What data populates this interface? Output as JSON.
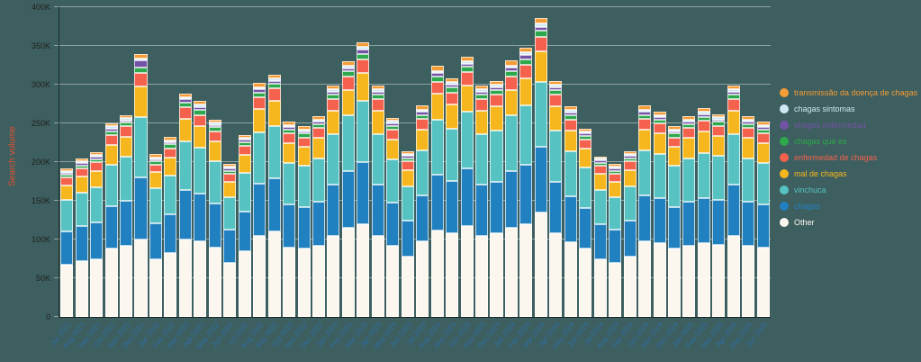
{
  "page": {
    "background_color": "#3e5f5f"
  },
  "axes": {
    "y_title_color": "#e25230",
    "y_tick_color": "#1f1f1f",
    "x_tick_color": "#2e6da4",
    "grid_color": "rgba(255,255,255,0.42)"
  },
  "chart_data": {
    "type": "bar",
    "stacked": true,
    "orientation": "vertical",
    "title": "",
    "xlabel": "",
    "ylabel": "Search volume",
    "values_unit": "thousands of searches (K)",
    "ylim_k": [
      0,
      400
    ],
    "yticks_k": [
      0,
      50,
      100,
      150,
      200,
      250,
      300,
      350,
      400
    ],
    "ytick_labels": [
      "0",
      "50K",
      "100K",
      "150K",
      "200K",
      "250K",
      "300K",
      "350K",
      "400K"
    ],
    "grid": "horizontal",
    "legend_position": "right",
    "legend_order": "top-to-bottom is reverse of stacking order",
    "categories": [
      "Jul 2021",
      "Aug 2021",
      "Sep 2021",
      "Oct 2021",
      "Nov 2021",
      "Dec 2021",
      "Jan 2022",
      "Feb 2022",
      "Mar 2022",
      "Apr 2022",
      "May 2022",
      "Jun 2022",
      "Jul 2022",
      "Aug 2022",
      "Sep 2022",
      "Oct 2022",
      "Nov 2022",
      "Dec 2022",
      "Jan 2023",
      "Feb 2023",
      "Mar 2023",
      "Apr 2023",
      "May 2023",
      "Jun 2023",
      "Jul 2023",
      "Aug 2023",
      "Sep 2023",
      "Oct 2023",
      "Nov 2023",
      "Dec 2023",
      "Jan 2024",
      "Feb 2024",
      "Mar 2024",
      "Apr 2024",
      "May 2024",
      "Jun 2024",
      "Jul 2024",
      "Aug 2024",
      "Sep 2024",
      "Oct 2024",
      "Nov 2024",
      "Dec 2024",
      "Jan 2025",
      "Feb 2025",
      "Mar 2025",
      "Apr 2025",
      "May 2025",
      "Jun 2025"
    ],
    "series": [
      {
        "name": "Other",
        "color": "#fbf7ee",
        "values_k": [
          68,
          72,
          75,
          88,
          92,
          100,
          75,
          82,
          100,
          98,
          90,
          70,
          85,
          105,
          110,
          90,
          88,
          92,
          105,
          115,
          120,
          105,
          92,
          78,
          98,
          112,
          108,
          118,
          105,
          108,
          115,
          120,
          135,
          108,
          97,
          88,
          75,
          70,
          78,
          98,
          95,
          88,
          92,
          95,
          93,
          105,
          92,
          90
        ]
      },
      {
        "name": "chagas",
        "color": "#2180c0",
        "values_k": [
          42,
          45,
          47,
          55,
          58,
          80,
          46,
          51,
          64,
          61,
          56,
          43,
          51,
          67,
          69,
          55,
          54,
          57,
          66,
          73,
          80,
          66,
          56,
          46,
          59,
          72,
          68,
          74,
          66,
          67,
          73,
          77,
          85,
          67,
          59,
          53,
          45,
          43,
          46,
          59,
          58,
          54,
          57,
          59,
          58,
          66,
          57,
          55
        ]
      },
      {
        "name": "vinchuca",
        "color": "#56c2c2",
        "values_k": [
          41,
          44,
          46,
          54,
          57,
          78,
          45,
          50,
          63,
          60,
          55,
          42,
          50,
          66,
          68,
          54,
          53,
          56,
          65,
          72,
          79,
          65,
          55,
          45,
          58,
          71,
          67,
          73,
          65,
          66,
          72,
          76,
          84,
          66,
          58,
          52,
          44,
          42,
          45,
          58,
          57,
          53,
          56,
          58,
          57,
          65,
          56,
          54
        ]
      },
      {
        "name": "mal de chagas",
        "color": "#f5b71d",
        "values_k": [
          19,
          21,
          21,
          25,
          26,
          40,
          21,
          23,
          29,
          28,
          26,
          20,
          23,
          31,
          32,
          25,
          25,
          26,
          30,
          33,
          36,
          30,
          26,
          21,
          27,
          33,
          31,
          34,
          30,
          31,
          33,
          35,
          39,
          31,
          27,
          24,
          21,
          20,
          21,
          27,
          27,
          25,
          26,
          27,
          26,
          30,
          26,
          25
        ]
      },
      {
        "name": "enfermedad de chagas",
        "color": "#f4624d",
        "values_k": [
          10,
          10,
          11,
          13,
          13,
          17,
          10,
          12,
          15,
          14,
          13,
          10,
          12,
          15,
          16,
          13,
          12,
          13,
          15,
          17,
          18,
          15,
          13,
          11,
          14,
          16,
          16,
          17,
          15,
          15,
          17,
          18,
          19,
          15,
          14,
          12,
          10,
          10,
          11,
          14,
          13,
          12,
          13,
          14,
          13,
          15,
          13,
          13
        ]
      },
      {
        "name": "chagas que es",
        "color": "#2ea84c",
        "values_k": [
          4,
          4,
          4,
          5,
          5,
          7,
          4,
          5,
          6,
          6,
          5,
          4,
          5,
          6,
          6,
          5,
          5,
          5,
          6,
          7,
          7,
          6,
          5,
          4,
          5,
          7,
          6,
          7,
          6,
          6,
          7,
          7,
          8,
          6,
          5,
          5,
          4,
          4,
          4,
          5,
          5,
          5,
          5,
          5,
          5,
          6,
          5,
          5
        ]
      },
      {
        "name": "chagas enfermedad",
        "color": "#7253a5",
        "values_k": [
          2,
          3,
          3,
          3,
          3,
          9,
          3,
          3,
          4,
          4,
          3,
          3,
          3,
          4,
          4,
          3,
          3,
          3,
          4,
          4,
          5,
          4,
          3,
          3,
          4,
          4,
          4,
          4,
          4,
          4,
          5,
          5,
          5,
          4,
          4,
          3,
          3,
          3,
          3,
          4,
          3,
          3,
          3,
          4,
          3,
          4,
          3,
          3
        ]
      },
      {
        "name": "chagas sintomas",
        "color": "#cfe8f3",
        "values_k": [
          2,
          2,
          2,
          3,
          3,
          3,
          2,
          2,
          3,
          3,
          3,
          2,
          2,
          3,
          3,
          3,
          2,
          3,
          3,
          3,
          4,
          3,
          3,
          2,
          3,
          3,
          3,
          3,
          3,
          3,
          3,
          4,
          4,
          3,
          3,
          2,
          2,
          2,
          2,
          3,
          3,
          2,
          3,
          3,
          3,
          3,
          3,
          3
        ]
      },
      {
        "name": "transmissão da doença de chagas",
        "color": "#f49c36",
        "values_k": [
          3,
          3,
          4,
          4,
          4,
          6,
          4,
          4,
          5,
          5,
          4,
          3,
          4,
          5,
          5,
          4,
          4,
          4,
          5,
          6,
          6,
          5,
          4,
          4,
          5,
          6,
          5,
          6,
          5,
          5,
          6,
          6,
          7,
          5,
          5,
          4,
          3,
          3,
          4,
          5,
          4,
          4,
          4,
          5,
          4,
          5,
          4,
          4
        ]
      }
    ]
  }
}
